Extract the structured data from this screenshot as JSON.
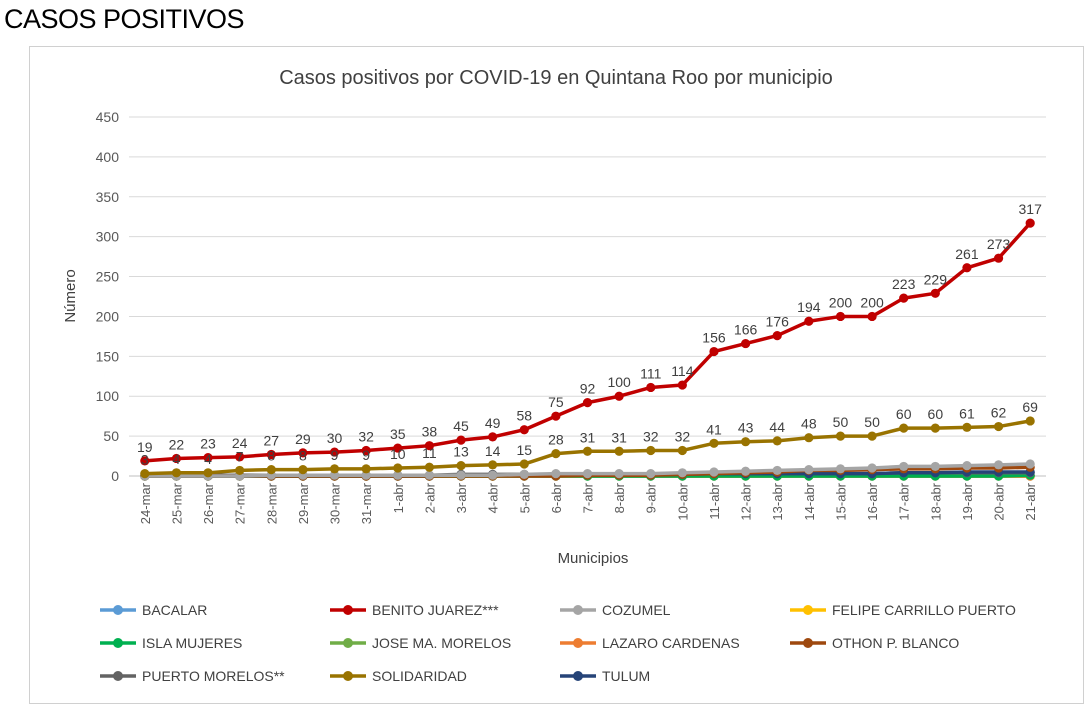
{
  "page": {
    "heading": "CASOS POSITIVOS"
  },
  "chart_data": {
    "type": "line",
    "title": "Casos positivos por COVID-19 en Quintana Roo por municipio",
    "xlabel": "Municipios",
    "ylabel": "Número",
    "ylim": [
      0,
      450
    ],
    "yticks": [
      0,
      50,
      100,
      150,
      200,
      250,
      300,
      350,
      400,
      450
    ],
    "grid": true,
    "legend_position": "bottom",
    "categories": [
      "24-mar",
      "25-mar",
      "26-mar",
      "27-mar",
      "28-mar",
      "29-mar",
      "30-mar",
      "31-mar",
      "1-abr",
      "2-abr",
      "3-abr",
      "4-abr",
      "5-abr",
      "6-abr",
      "7-abr",
      "8-abr",
      "9-abr",
      "10-abr",
      "11-abr",
      "12-abr",
      "13-abr",
      "14-abr",
      "15-abr",
      "16-abr",
      "17-abr",
      "18-abr",
      "19-abr",
      "20-abr",
      "21-abr"
    ],
    "series": [
      {
        "name": "BACALAR",
        "color": "#5b9bd5",
        "values": [
          0,
          0,
          0,
          0,
          0,
          0,
          0,
          0,
          0,
          0,
          0,
          0,
          0,
          0,
          0,
          0,
          0,
          0,
          0,
          0,
          0,
          0,
          0,
          0,
          0,
          0,
          0,
          0,
          0
        ]
      },
      {
        "name": "BENITO JUAREZ***",
        "color": "#c00000",
        "labeled": true,
        "label_pos": "above",
        "values": [
          19,
          22,
          23,
          24,
          27,
          29,
          30,
          32,
          35,
          38,
          45,
          49,
          58,
          75,
          92,
          100,
          111,
          114,
          156,
          166,
          176,
          194,
          200,
          200,
          223,
          229,
          261,
          273,
          317
        ]
      },
      {
        "name": "COZUMEL",
        "color": "#a5a5a5",
        "values": [
          0,
          0,
          0,
          0,
          1,
          1,
          1,
          1,
          1,
          1,
          1,
          1,
          2,
          3,
          3,
          3,
          3,
          4,
          5,
          6,
          7,
          8,
          9,
          10,
          12,
          12,
          13,
          14,
          15
        ]
      },
      {
        "name": "FELIPE CARRILLO PUERTO",
        "color": "#ffc000",
        "values": [
          0,
          0,
          0,
          0,
          0,
          0,
          0,
          0,
          0,
          0,
          0,
          0,
          0,
          0,
          0,
          0,
          0,
          0,
          0,
          0,
          0,
          0,
          0,
          0,
          0,
          0,
          0,
          0,
          0
        ]
      },
      {
        "name": "ISLA MUJERES",
        "color": "#00b050",
        "values": [
          0,
          0,
          0,
          0,
          0,
          0,
          0,
          0,
          0,
          0,
          0,
          0,
          0,
          0,
          0,
          0,
          0,
          0,
          0,
          0,
          0,
          0,
          0,
          0,
          0,
          0,
          0,
          0,
          1
        ]
      },
      {
        "name": "JOSE MA. MORELOS",
        "color": "#70ad47",
        "values": [
          0,
          0,
          0,
          0,
          0,
          0,
          0,
          0,
          0,
          0,
          0,
          0,
          0,
          0,
          0,
          0,
          0,
          0,
          0,
          0,
          0,
          0,
          0,
          0,
          0,
          0,
          0,
          0,
          0
        ]
      },
      {
        "name": "LAZARO CARDENAS",
        "color": "#ed7d31",
        "values": [
          0,
          0,
          0,
          0,
          0,
          0,
          0,
          0,
          0,
          0,
          0,
          0,
          0,
          0,
          0,
          0,
          0,
          0,
          0,
          0,
          0,
          0,
          0,
          0,
          0,
          0,
          0,
          0,
          0
        ]
      },
      {
        "name": "OTHON P. BLANCO",
        "color": "#9e480e",
        "values": [
          0,
          0,
          0,
          0,
          0,
          0,
          0,
          0,
          0,
          0,
          0,
          0,
          0,
          0,
          1,
          1,
          1,
          2,
          3,
          4,
          5,
          7,
          7,
          8,
          9,
          9,
          10,
          10,
          11
        ]
      },
      {
        "name": "PUERTO MORELOS**",
        "color": "#636363",
        "values": [
          1,
          1,
          1,
          1,
          1,
          1,
          1,
          1,
          1,
          1,
          2,
          2,
          2,
          2,
          2,
          2,
          2,
          2,
          3,
          3,
          3,
          3,
          3,
          3,
          4,
          4,
          4,
          4,
          4
        ]
      },
      {
        "name": "SOLIDARIDAD",
        "color": "#997300",
        "labeled": true,
        "label_pos": "above",
        "values": [
          3,
          4,
          4,
          7,
          8,
          8,
          9,
          9,
          10,
          11,
          13,
          14,
          15,
          28,
          31,
          31,
          32,
          32,
          41,
          43,
          44,
          48,
          50,
          50,
          60,
          60,
          61,
          62,
          69
        ]
      },
      {
        "name": "TULUM",
        "color": "#264478",
        "values": [
          0,
          0,
          0,
          0,
          0,
          0,
          0,
          0,
          0,
          0,
          1,
          1,
          1,
          2,
          2,
          2,
          2,
          2,
          3,
          3,
          3,
          3,
          3,
          3,
          4,
          4,
          5,
          5,
          5
        ]
      }
    ]
  }
}
